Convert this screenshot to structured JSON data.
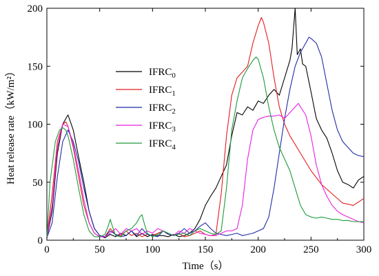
{
  "chart_data": {
    "type": "line",
    "xlabel": "Time（s）",
    "ylabel": "Heat release rate（kW/m²）",
    "xlim": [
      0,
      300
    ],
    "ylim": [
      0,
      200
    ],
    "xticks": [
      0,
      50,
      100,
      150,
      200,
      250,
      300
    ],
    "yticks": [
      0,
      50,
      100,
      150,
      200
    ],
    "grid": false,
    "legend_position": "upper-left-center",
    "series": [
      {
        "name": "IFRC",
        "sub": "0",
        "color": "#000000",
        "x": [
          0,
          5,
          10,
          15,
          18,
          20,
          22,
          25,
          30,
          35,
          40,
          45,
          50,
          55,
          60,
          65,
          70,
          75,
          80,
          85,
          90,
          95,
          100,
          105,
          110,
          115,
          120,
          125,
          130,
          135,
          140,
          145,
          150,
          155,
          160,
          165,
          170,
          175,
          180,
          185,
          190,
          195,
          200,
          205,
          210,
          215,
          220,
          225,
          230,
          232,
          235,
          237,
          240,
          242,
          245,
          250,
          255,
          260,
          265,
          270,
          275,
          280,
          285,
          290,
          295,
          300
        ],
        "y": [
          2,
          25,
          75,
          100,
          105,
          108,
          103,
          95,
          72,
          50,
          25,
          10,
          4,
          2,
          5,
          3,
          6,
          4,
          8,
          3,
          6,
          3,
          5,
          4,
          4,
          3,
          5,
          3,
          4,
          6,
          10,
          18,
          30,
          38,
          45,
          55,
          65,
          90,
          110,
          108,
          115,
          112,
          120,
          118,
          125,
          130,
          125,
          140,
          155,
          165,
          200,
          160,
          165,
          152,
          150,
          128,
          105,
          95,
          88,
          75,
          60,
          50,
          48,
          45,
          52,
          55
        ]
      },
      {
        "name": "IFRC",
        "sub": "1",
        "color": "#e41a1c",
        "x": [
          0,
          5,
          10,
          15,
          18,
          20,
          25,
          30,
          35,
          40,
          45,
          50,
          55,
          60,
          65,
          70,
          75,
          80,
          85,
          90,
          95,
          100,
          105,
          110,
          115,
          120,
          125,
          130,
          135,
          140,
          145,
          150,
          155,
          160,
          165,
          170,
          175,
          180,
          185,
          190,
          195,
          200,
          203,
          205,
          210,
          215,
          220,
          225,
          230,
          240,
          250,
          260,
          270,
          280,
          290,
          300
        ],
        "y": [
          2,
          40,
          85,
          100,
          102,
          98,
          80,
          55,
          30,
          15,
          6,
          3,
          3,
          10,
          5,
          4,
          8,
          4,
          6,
          3,
          5,
          4,
          6,
          8,
          5,
          4,
          6,
          3,
          4,
          6,
          8,
          5,
          4,
          5,
          40,
          90,
          125,
          140,
          145,
          150,
          170,
          185,
          192,
          188,
          170,
          140,
          115,
          100,
          90,
          75,
          60,
          48,
          40,
          32,
          30,
          36
        ]
      },
      {
        "name": "IFRC",
        "sub": "2",
        "color": "#1f2aa8",
        "x": [
          0,
          5,
          10,
          15,
          20,
          25,
          30,
          35,
          40,
          45,
          50,
          55,
          60,
          65,
          70,
          75,
          80,
          85,
          90,
          95,
          100,
          105,
          110,
          115,
          120,
          125,
          130,
          135,
          140,
          145,
          150,
          155,
          160,
          165,
          170,
          175,
          180,
          185,
          190,
          195,
          200,
          205,
          210,
          215,
          220,
          225,
          230,
          235,
          240,
          245,
          248,
          250,
          255,
          260,
          265,
          270,
          275,
          280,
          285,
          290,
          295,
          300
        ],
        "y": [
          2,
          15,
          55,
          85,
          95,
          85,
          68,
          45,
          25,
          10,
          4,
          3,
          8,
          5,
          3,
          4,
          8,
          4,
          10,
          5,
          4,
          3,
          8,
          5,
          4,
          6,
          10,
          6,
          8,
          12,
          15,
          10,
          6,
          5,
          4,
          5,
          6,
          4,
          5,
          6,
          8,
          10,
          20,
          45,
          75,
          105,
          130,
          150,
          162,
          170,
          175,
          174,
          170,
          158,
          135,
          112,
          95,
          85,
          80,
          75,
          73,
          72
        ]
      },
      {
        "name": "IFRC",
        "sub": "3",
        "color": "#e81ee0",
        "x": [
          0,
          5,
          10,
          15,
          20,
          25,
          30,
          35,
          40,
          45,
          50,
          55,
          60,
          65,
          70,
          75,
          80,
          85,
          90,
          95,
          100,
          105,
          110,
          115,
          120,
          125,
          130,
          135,
          140,
          145,
          150,
          155,
          160,
          165,
          170,
          175,
          180,
          185,
          190,
          195,
          200,
          205,
          210,
          215,
          220,
          225,
          230,
          235,
          238,
          240,
          245,
          250,
          255,
          260,
          265,
          270,
          275,
          280,
          285,
          290,
          295,
          300
        ],
        "y": [
          2,
          30,
          80,
          100,
          98,
          82,
          60,
          35,
          15,
          6,
          3,
          3,
          6,
          10,
          5,
          10,
          8,
          10,
          5,
          8,
          6,
          10,
          8,
          6,
          4,
          8,
          6,
          10,
          8,
          6,
          5,
          4,
          4,
          6,
          8,
          8,
          10,
          30,
          70,
          95,
          104,
          106,
          107,
          107,
          108,
          105,
          110,
          115,
          118,
          115,
          108,
          90,
          65,
          48,
          38,
          30,
          25,
          22,
          20,
          18,
          16,
          15
        ]
      },
      {
        "name": "IFRC",
        "sub": "4",
        "color": "#1a9a3a",
        "x": [
          0,
          3,
          8,
          12,
          15,
          18,
          20,
          25,
          30,
          35,
          40,
          45,
          50,
          55,
          58,
          60,
          62,
          65,
          70,
          75,
          80,
          85,
          88,
          90,
          92,
          95,
          100,
          105,
          110,
          115,
          120,
          125,
          130,
          135,
          140,
          145,
          150,
          155,
          160,
          165,
          170,
          175,
          180,
          185,
          190,
          195,
          198,
          200,
          205,
          210,
          215,
          220,
          225,
          230,
          235,
          240,
          245,
          250,
          255,
          260,
          265,
          270,
          275,
          280,
          285,
          290,
          295,
          300
        ],
        "y": [
          2,
          50,
          85,
          95,
          97,
          95,
          90,
          70,
          45,
          22,
          8,
          3,
          3,
          5,
          12,
          18,
          12,
          4,
          3,
          8,
          10,
          15,
          20,
          22,
          15,
          6,
          3,
          5,
          8,
          6,
          4,
          5,
          6,
          4,
          8,
          10,
          8,
          6,
          5,
          8,
          45,
          95,
          120,
          140,
          148,
          155,
          158,
          156,
          140,
          115,
          95,
          80,
          70,
          60,
          45,
          30,
          22,
          20,
          19,
          20,
          19,
          18,
          18,
          17,
          17,
          16,
          16,
          16
        ]
      }
    ]
  }
}
